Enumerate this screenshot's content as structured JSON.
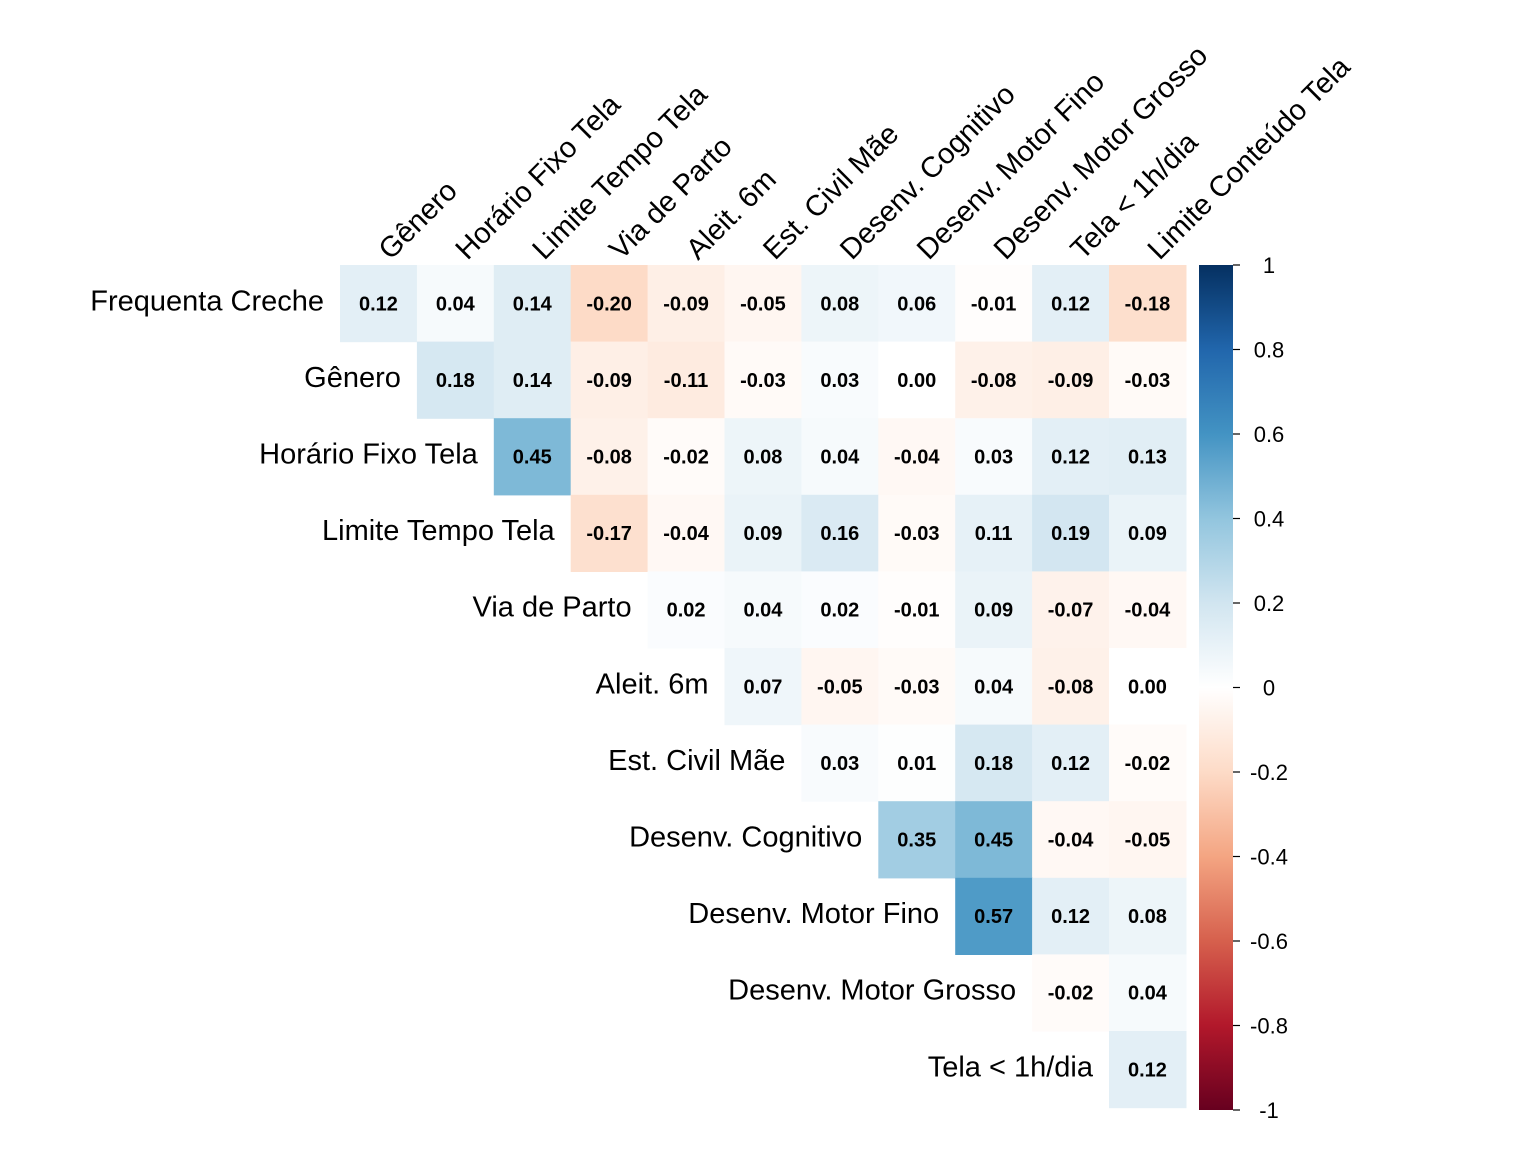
{
  "chart_data": {
    "type": "heatmap",
    "title": "",
    "row_labels": [
      "Frequenta Creche",
      "Gênero",
      "Horário Fixo Tela",
      "Limite Tempo Tela",
      "Via de Parto",
      "Aleit. 6m",
      "Est. Civil Mãe",
      "Desenv. Cognitivo",
      "Desenv. Motor Fino",
      "Desenv. Motor Grosso",
      "Tela < 1h/dia"
    ],
    "col_labels": [
      "Gênero",
      "Horário Fixo Tela",
      "Limite Tempo Tela",
      "Via de Parto",
      "Aleit. 6m",
      "Est. Civil Mãe",
      "Desenv. Cognitivo",
      "Desenv. Motor Fino",
      "Desenv. Motor Grosso",
      "Tela < 1h/dia",
      "Limite Conteúdo Tela"
    ],
    "values": [
      [
        0.12,
        0.04,
        0.14,
        -0.2,
        -0.09,
        -0.05,
        0.08,
        0.06,
        -0.01,
        0.12,
        -0.18
      ],
      [
        null,
        0.18,
        0.14,
        -0.09,
        -0.11,
        -0.03,
        0.03,
        0.0,
        -0.08,
        -0.09,
        -0.03
      ],
      [
        null,
        null,
        0.45,
        -0.08,
        -0.02,
        0.08,
        0.04,
        -0.04,
        0.03,
        0.12,
        0.13
      ],
      [
        null,
        null,
        null,
        -0.17,
        -0.04,
        0.09,
        0.16,
        -0.03,
        0.11,
        0.19,
        0.09
      ],
      [
        null,
        null,
        null,
        null,
        0.02,
        0.04,
        0.02,
        -0.01,
        0.09,
        -0.07,
        -0.04
      ],
      [
        null,
        null,
        null,
        null,
        null,
        0.07,
        -0.05,
        -0.03,
        0.04,
        -0.08,
        0.0
      ],
      [
        null,
        null,
        null,
        null,
        null,
        null,
        0.03,
        0.01,
        0.18,
        0.12,
        -0.02
      ],
      [
        null,
        null,
        null,
        null,
        null,
        null,
        null,
        0.35,
        0.45,
        -0.04,
        -0.05
      ],
      [
        null,
        null,
        null,
        null,
        null,
        null,
        null,
        null,
        0.57,
        0.12,
        0.08
      ],
      [
        null,
        null,
        null,
        null,
        null,
        null,
        null,
        null,
        null,
        -0.02,
        0.04
      ],
      [
        null,
        null,
        null,
        null,
        null,
        null,
        null,
        null,
        null,
        null,
        0.12
      ]
    ],
    "value_labels": [
      [
        "0.12",
        "0.04",
        "0.14",
        "-0.20",
        "-0.09",
        "-0.05",
        "0.08",
        "0.06",
        "-0.01",
        "0.12",
        "-0.18"
      ],
      [
        null,
        "0.18",
        "0.14",
        "-0.09",
        "-0.11",
        "-0.03",
        "0.03",
        "0.00",
        "-0.08",
        "-0.09",
        "-0.03"
      ],
      [
        null,
        null,
        "0.45",
        "-0.08",
        "-0.02",
        "0.08",
        "0.04",
        "-0.04",
        "0.03",
        "0.12",
        "0.13"
      ],
      [
        null,
        null,
        null,
        "-0.17",
        "-0.04",
        "0.09",
        "0.16",
        "-0.03",
        "0.11",
        "0.19",
        "0.09"
      ],
      [
        null,
        null,
        null,
        null,
        "0.02",
        "0.04",
        "0.02",
        "-0.01",
        "0.09",
        "-0.07",
        "-0.04"
      ],
      [
        null,
        null,
        null,
        null,
        null,
        "0.07",
        "-0.05",
        "-0.03",
        "0.04",
        "-0.08",
        "0.00"
      ],
      [
        null,
        null,
        null,
        null,
        null,
        null,
        "0.03",
        "0.01",
        "0.18",
        "0.12",
        "-0.02"
      ],
      [
        null,
        null,
        null,
        null,
        null,
        null,
        null,
        "0.35",
        "0.45",
        "-0.04",
        "-0.05"
      ],
      [
        null,
        null,
        null,
        null,
        null,
        null,
        null,
        null,
        "0.57",
        "0.12",
        "0.08"
      ],
      [
        null,
        null,
        null,
        null,
        null,
        null,
        null,
        null,
        null,
        "-0.02",
        "0.04"
      ],
      [
        null,
        null,
        null,
        null,
        null,
        null,
        null,
        null,
        null,
        null,
        "0.12"
      ]
    ],
    "colorbar": {
      "range": [
        -1,
        1
      ],
      "ticks": [
        1,
        0.8,
        0.6,
        0.4,
        0.2,
        0,
        -0.2,
        -0.4,
        -0.6,
        -0.8,
        -1
      ],
      "tick_labels": [
        "1",
        "0.8",
        "0.6",
        "0.4",
        "0.2",
        "0",
        "-0.2",
        "-0.4",
        "-0.6",
        "-0.8",
        "-1"
      ],
      "colors": [
        "#67001F",
        "#B2182B",
        "#D6604D",
        "#F4A582",
        "#FDDBC7",
        "#FFFFFF",
        "#D1E5F0",
        "#92C5DE",
        "#4393C3",
        "#2166AC",
        "#053061"
      ]
    },
    "grid": false,
    "legend_position": "right"
  }
}
